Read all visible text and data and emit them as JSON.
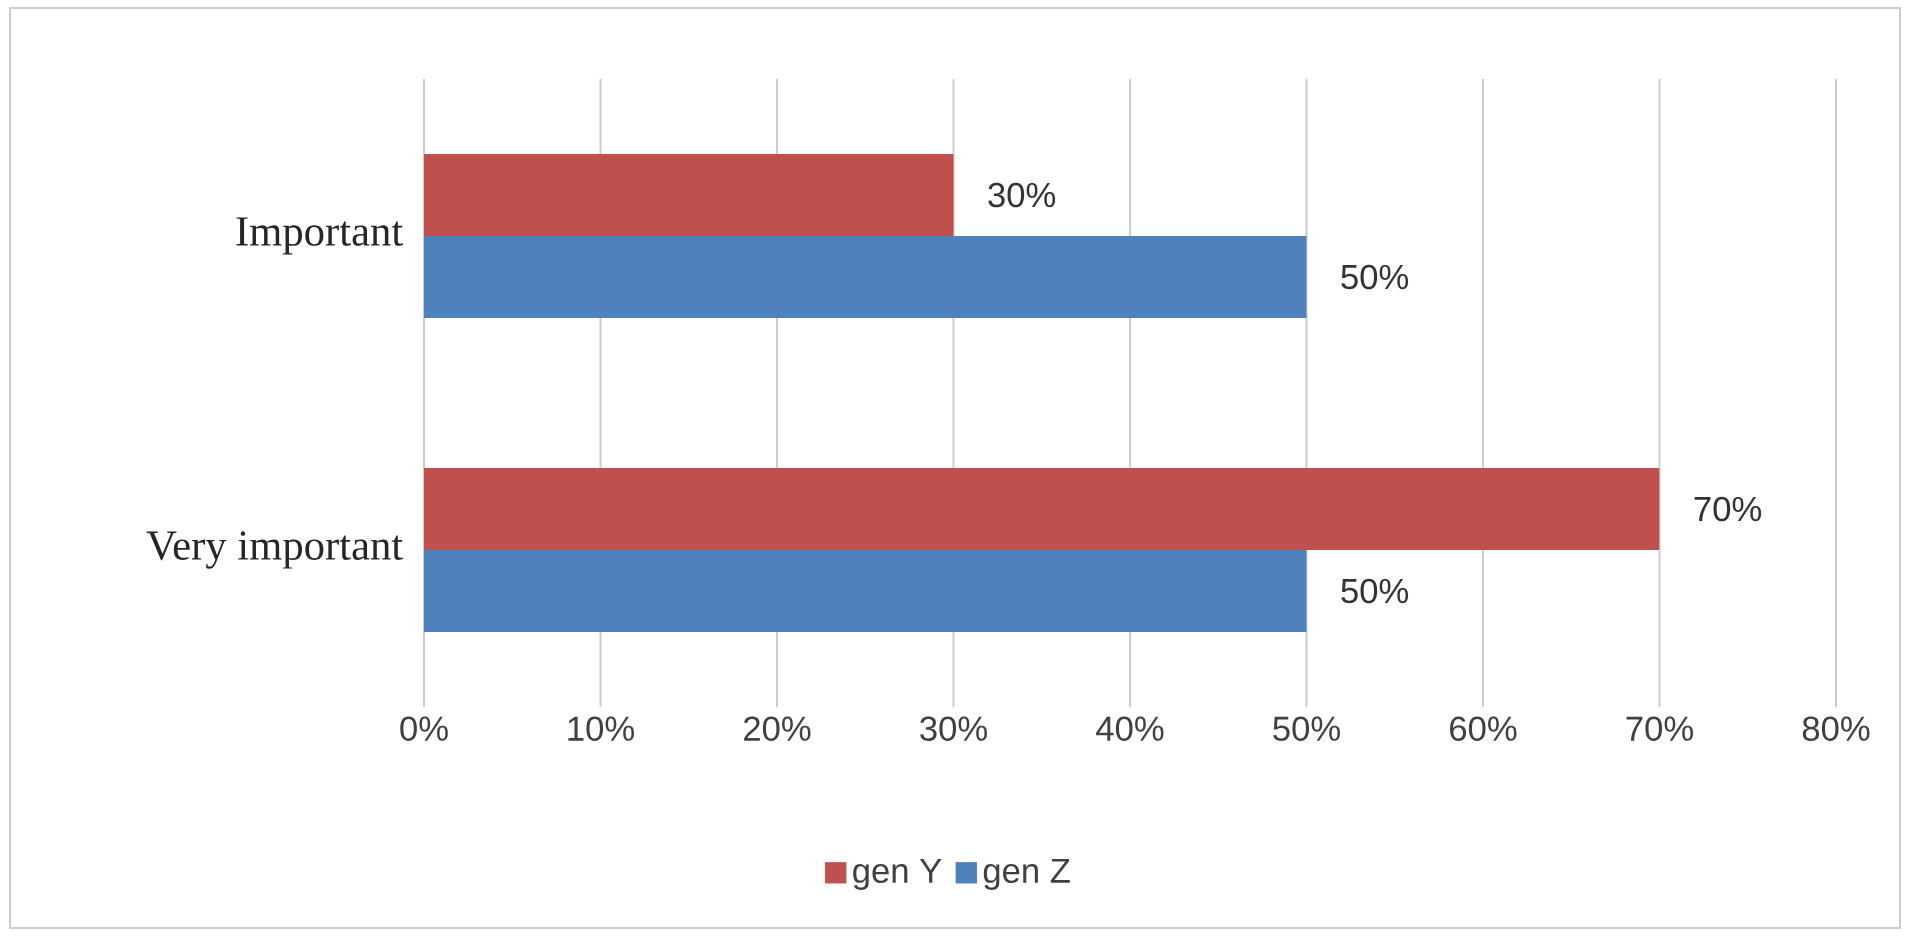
{
  "chart_data": {
    "type": "bar",
    "orientation": "horizontal",
    "categories": [
      "Important",
      "Very important"
    ],
    "series": [
      {
        "name": "gen Y",
        "color": "#c0504d",
        "values": [
          30,
          70
        ],
        "value_labels": [
          "30%",
          "70%"
        ]
      },
      {
        "name": "gen Z",
        "color": "#4f81bd",
        "values": [
          50,
          50
        ],
        "value_labels": [
          "50%",
          "50%"
        ]
      }
    ],
    "xlim": [
      0,
      80
    ],
    "xticks": [
      {
        "value": 0,
        "label": "0%"
      },
      {
        "value": 10,
        "label": "10%"
      },
      {
        "value": 20,
        "label": "20%"
      },
      {
        "value": 30,
        "label": "30%"
      },
      {
        "value": 40,
        "label": "40%"
      },
      {
        "value": 50,
        "label": "50%"
      },
      {
        "value": 60,
        "label": "60%"
      },
      {
        "value": 70,
        "label": "70%"
      },
      {
        "value": 80,
        "label": "80%"
      }
    ],
    "grid": "x",
    "legend": "bottom"
  }
}
